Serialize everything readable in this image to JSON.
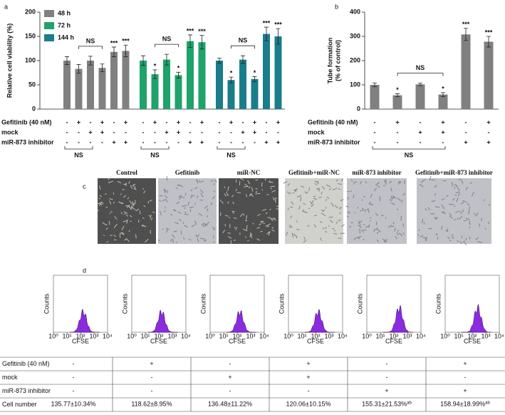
{
  "chart_data": [
    {
      "type": "bar",
      "panel": "a",
      "ylabel": "Relative cell viability (%)",
      "ylim": [
        0,
        200
      ],
      "yticks": [
        0,
        50,
        100,
        150,
        200
      ],
      "legend": "top-left",
      "note": "NS",
      "series": [
        {
          "name": "48 h",
          "color": "#808080",
          "values": [
            100,
            83,
            100,
            85,
            118,
            120
          ],
          "errors": [
            8,
            9,
            9,
            8,
            10,
            12
          ],
          "significance": [
            null,
            null,
            null,
            null,
            "***",
            "***"
          ]
        },
        {
          "name": "72 h",
          "color": "#1ea36b",
          "values": [
            100,
            72,
            102,
            70,
            140,
            138
          ],
          "errors": [
            10,
            9,
            11,
            6,
            13,
            14
          ],
          "significance": [
            null,
            "*",
            null,
            "*",
            "***",
            "***"
          ]
        },
        {
          "name": "144 h",
          "color": "#1a7d8c",
          "values": [
            100,
            60,
            102,
            62,
            155,
            150
          ],
          "errors": [
            5,
            6,
            8,
            5,
            14,
            16
          ],
          "significance": [
            null,
            "*",
            null,
            "*",
            "***",
            "***"
          ]
        }
      ],
      "conditions": [
        {
          "label": "Gefitinib (40 nM)",
          "signs": [
            "-",
            "+",
            "-",
            "+",
            "-",
            "+"
          ]
        },
        {
          "label": "mock",
          "signs": [
            "-",
            "-",
            "+",
            "+",
            "-",
            "-"
          ]
        },
        {
          "label": "miR-873 inhibitor",
          "signs": [
            "-",
            "-",
            "-",
            "-",
            "+",
            "+"
          ]
        }
      ]
    },
    {
      "type": "bar",
      "panel": "b",
      "ylabel": [
        "Tube formation",
        "(% of control)"
      ],
      "ylim": [
        0,
        400
      ],
      "yticks": [
        0,
        100,
        200,
        300,
        400
      ],
      "note": "NS",
      "color": "#808080",
      "values": [
        100,
        57,
        102,
        60,
        308,
        278
      ],
      "errors": [
        8,
        6,
        5,
        8,
        25,
        22
      ],
      "significance": [
        null,
        "*",
        null,
        "*",
        "***",
        "***"
      ],
      "conditions": [
        {
          "label": "Gefitinib (40 nM)",
          "signs": [
            "-",
            "+",
            "-",
            "+",
            "-",
            "+"
          ]
        },
        {
          "label": "mock",
          "signs": [
            "-",
            "-",
            "+",
            "+",
            "-",
            "-"
          ]
        },
        {
          "label": "miR-873 inhibitor",
          "signs": [
            "-",
            "-",
            "-",
            "-",
            "+",
            "+"
          ]
        }
      ]
    }
  ],
  "micrographs": {
    "panel": "c",
    "titles": [
      "Control",
      "Gefitinib",
      "miR-NC",
      "Gefitinib+miR-NC",
      "miR-873 inhibitor",
      "Gefitinib+miR-873 inhibitor"
    ]
  },
  "flow": {
    "panel": "d",
    "ylabel": "Counts",
    "xlabel": "CFSE",
    "xticks": [
      "10⁰",
      "10¹",
      "10²",
      "10³",
      "10⁴"
    ]
  },
  "table": {
    "rows": [
      {
        "label": "Gefitinib (40 nM)",
        "cells": [
          "-",
          "+",
          "-",
          "+",
          "-",
          "+"
        ]
      },
      {
        "label": "mock",
        "cells": [
          "-",
          "-",
          "+",
          "+",
          "-",
          "-"
        ]
      },
      {
        "label": "miR-873 inhibitor",
        "cells": [
          "-",
          "-",
          "-",
          "-",
          "+",
          "+"
        ]
      },
      {
        "label": "Cell number",
        "cells": [
          {
            "text": "135.77±10.34%"
          },
          {
            "text": "118.62±8.95%"
          },
          {
            "text": "136.48±11.22%"
          },
          {
            "text": "120.06±10.15%"
          },
          {
            "text": "155.31±21.53%",
            "sup": "ab"
          },
          {
            "text": "158.94±18.99%",
            "sup": "ab"
          }
        ]
      }
    ]
  }
}
